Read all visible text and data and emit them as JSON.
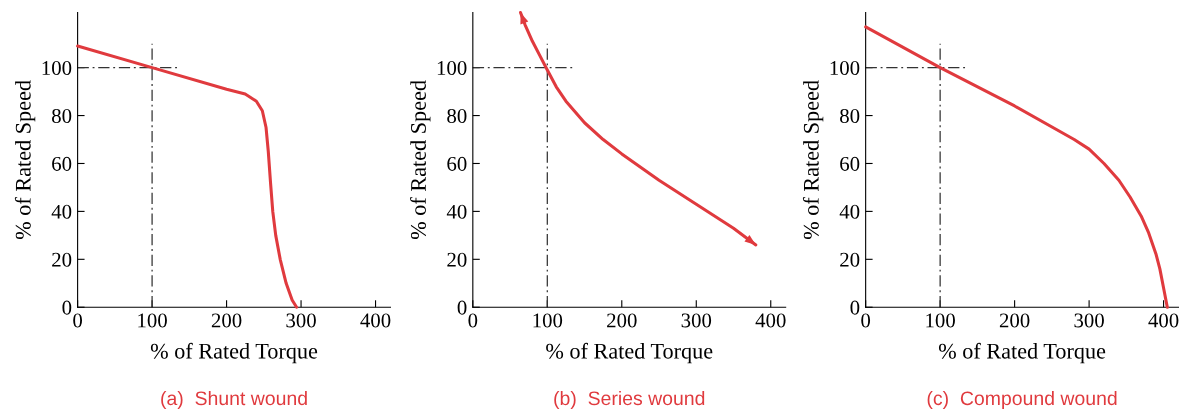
{
  "chart_data": [
    {
      "type": "line",
      "title": "(a)  Shunt wound",
      "xlabel": "% of Rated Torque",
      "ylabel": "% of Rated Speed",
      "xlim": [
        0,
        420
      ],
      "ylim": [
        0,
        123
      ],
      "xticks": [
        0,
        100,
        200,
        300,
        400
      ],
      "yticks": [
        0,
        20,
        40,
        60,
        80,
        100
      ],
      "grid": false,
      "legend": false,
      "series": [
        {
          "color": "#333333",
          "line_style": "dashed",
          "x": [
            100,
            100
          ],
          "values": [
            0,
            110
          ]
        },
        {
          "color": "#333333",
          "line_style": "dashed",
          "x": [
            0,
            135
          ],
          "values": [
            100,
            100
          ]
        },
        {
          "color": "#e03a3e",
          "x": [
            0,
            100,
            200,
            225,
            240,
            248,
            253,
            256,
            259,
            262,
            266,
            272,
            280,
            288,
            294
          ],
          "values": [
            109,
            100,
            91,
            89,
            86,
            82,
            75,
            65,
            52,
            40,
            30,
            20,
            10,
            3,
            0
          ]
        }
      ]
    },
    {
      "type": "line",
      "title": "(b)  Series wound",
      "xlabel": "% of Rated Torque",
      "ylabel": "% of Rated Speed",
      "xlim": [
        0,
        420
      ],
      "ylim": [
        0,
        123
      ],
      "xticks": [
        0,
        100,
        200,
        300,
        400
      ],
      "yticks": [
        0,
        20,
        40,
        60,
        80,
        100
      ],
      "grid": false,
      "legend": false,
      "series": [
        {
          "color": "#333333",
          "line_style": "dashed",
          "x": [
            100,
            100
          ],
          "values": [
            0,
            110
          ]
        },
        {
          "color": "#333333",
          "line_style": "dashed",
          "x": [
            0,
            135
          ],
          "values": [
            100,
            100
          ]
        },
        {
          "color": "#e03a3e",
          "x": [
            64,
            70,
            80,
            90,
            100,
            112,
            125,
            150,
            175,
            200,
            250,
            300,
            350,
            380
          ],
          "values": [
            123,
            118,
            111,
            105,
            99,
            92,
            86,
            77,
            70,
            64,
            53,
            43,
            33,
            26
          ]
        }
      ]
    },
    {
      "type": "line",
      "title": "(c)  Compound wound",
      "xlabel": "% of Rated Torque",
      "ylabel": "% of Rated Speed",
      "xlim": [
        0,
        420
      ],
      "ylim": [
        0,
        123
      ],
      "xticks": [
        0,
        100,
        200,
        300,
        400
      ],
      "yticks": [
        0,
        20,
        40,
        60,
        80,
        100
      ],
      "grid": false,
      "legend": false,
      "series": [
        {
          "color": "#333333",
          "line_style": "dashed",
          "x": [
            100,
            100
          ],
          "values": [
            0,
            110
          ]
        },
        {
          "color": "#333333",
          "line_style": "dashed",
          "x": [
            0,
            135
          ],
          "values": [
            100,
            100
          ]
        },
        {
          "color": "#e03a3e",
          "x": [
            0,
            100,
            200,
            280,
            300,
            320,
            340,
            355,
            370,
            380,
            390,
            395,
            400,
            405
          ],
          "values": [
            117,
            100,
            84,
            70,
            66,
            60,
            53,
            46,
            38,
            31,
            22,
            16,
            8,
            0
          ]
        }
      ]
    }
  ]
}
